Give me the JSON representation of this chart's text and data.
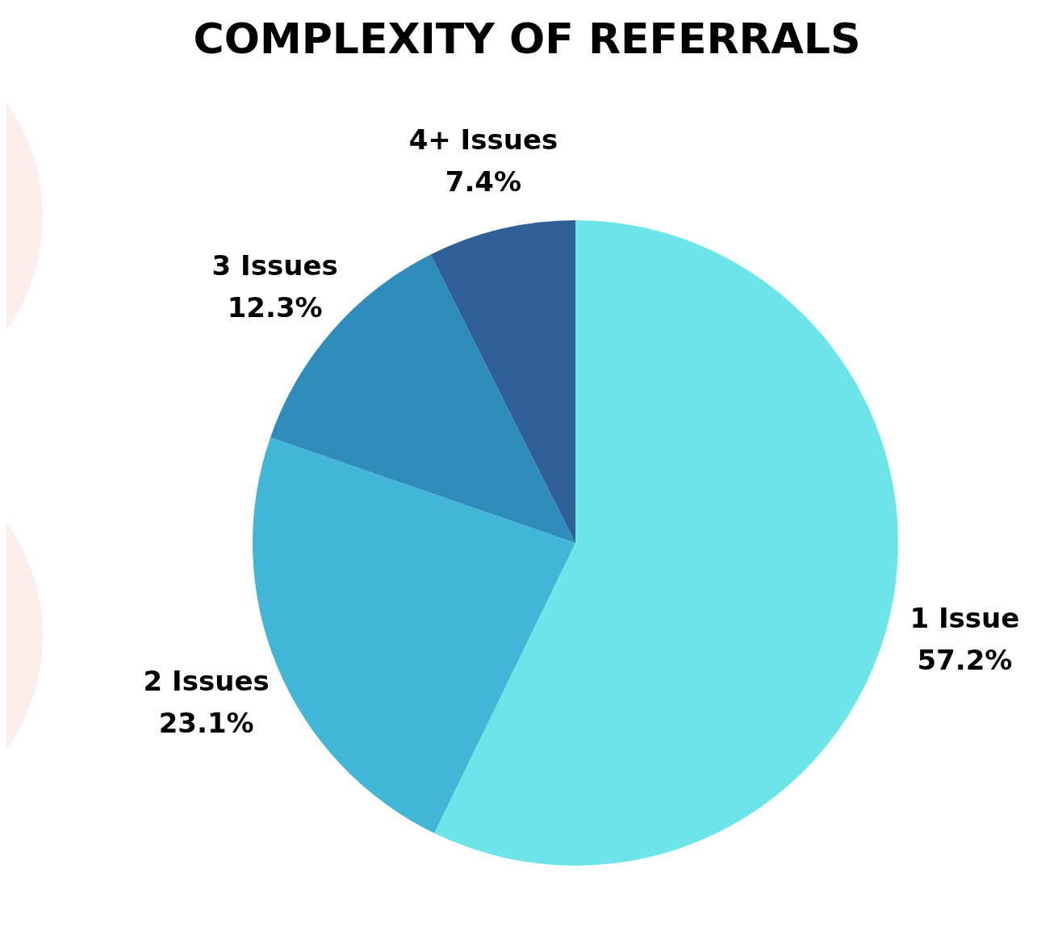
{
  "chart_data": {
    "type": "pie",
    "title": "COMPLEXITY OF REFERRALS",
    "categories": [
      "1 Issue",
      "2 Issues",
      "3 Issues",
      "4+ Issues"
    ],
    "values": [
      57.2,
      23.1,
      12.3,
      7.4
    ],
    "value_labels": [
      "57.2%",
      "23.1%",
      "12.3%",
      "7.4%"
    ],
    "colors": [
      "#6ce4e8",
      "#42b6d6",
      "#2e8bba",
      "#2e5f97"
    ],
    "legend": false
  }
}
